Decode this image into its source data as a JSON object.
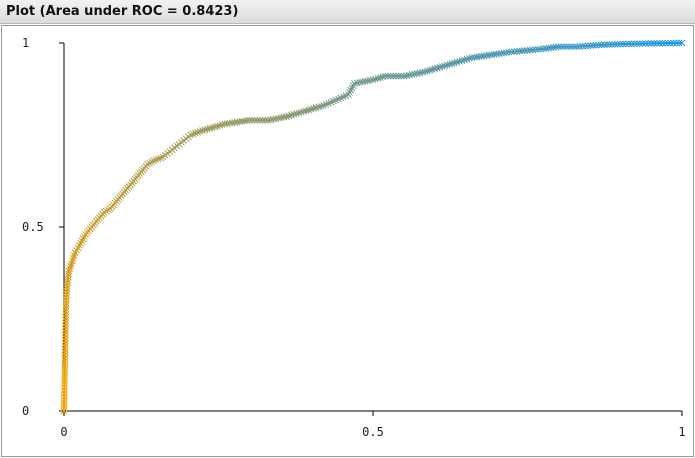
{
  "window": {
    "title": "Plot (Area under ROC = 0.8423)"
  },
  "chart_data": {
    "type": "line",
    "marker": "x",
    "colors": {
      "start": "#f5a000",
      "end": "#1f96e6"
    },
    "xlim": [
      0,
      1
    ],
    "ylim": [
      0,
      1
    ],
    "x_ticks": [
      {
        "value": 0,
        "label": "0"
      },
      {
        "value": 0.5,
        "label": "0.5"
      },
      {
        "value": 1,
        "label": "1"
      }
    ],
    "y_ticks": [
      {
        "value": 0,
        "label": "0"
      },
      {
        "value": 0.5,
        "label": "0.5"
      },
      {
        "value": 1,
        "label": "1"
      }
    ],
    "grid": false,
    "series": [
      {
        "x": [
          0,
          0.003,
          0.005,
          0.008,
          0.012,
          0.018,
          0.025,
          0.035,
          0.045,
          0.055,
          0.065,
          0.075,
          0.085,
          0.095,
          0.105,
          0.115,
          0.125,
          0.135,
          0.145,
          0.16,
          0.175,
          0.19,
          0.205,
          0.22,
          0.24,
          0.26,
          0.28,
          0.3,
          0.33,
          0.36,
          0.38,
          0.4,
          0.42,
          0.44,
          0.46,
          0.47,
          0.5,
          0.52,
          0.55,
          0.58,
          0.6,
          0.62,
          0.64,
          0.66,
          0.68,
          0.7,
          0.72,
          0.75,
          0.78,
          0.8,
          0.83,
          0.87,
          0.9,
          0.95,
          1.0
        ],
        "y": [
          0,
          0.27,
          0.34,
          0.38,
          0.4,
          0.43,
          0.45,
          0.48,
          0.5,
          0.52,
          0.54,
          0.55,
          0.57,
          0.59,
          0.61,
          0.63,
          0.65,
          0.67,
          0.68,
          0.69,
          0.71,
          0.73,
          0.75,
          0.76,
          0.77,
          0.78,
          0.785,
          0.79,
          0.79,
          0.8,
          0.81,
          0.82,
          0.83,
          0.845,
          0.86,
          0.89,
          0.9,
          0.91,
          0.91,
          0.92,
          0.93,
          0.94,
          0.95,
          0.96,
          0.965,
          0.97,
          0.975,
          0.98,
          0.985,
          0.99,
          0.99,
          0.995,
          0.997,
          0.999,
          1.0
        ]
      }
    ]
  }
}
